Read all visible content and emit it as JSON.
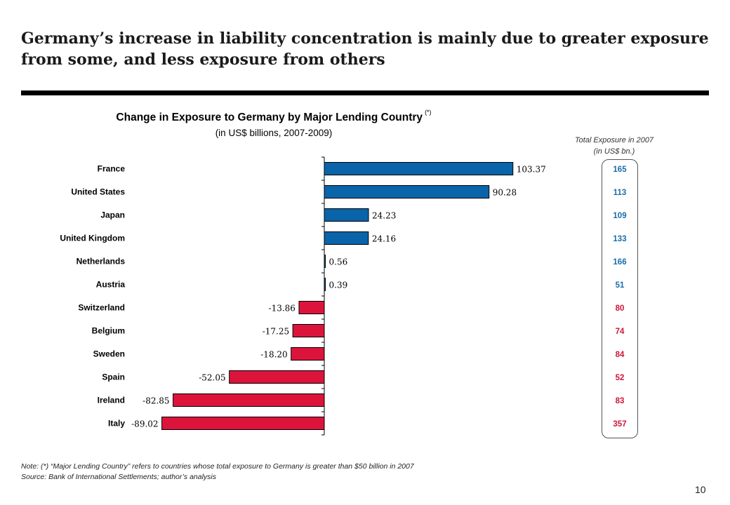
{
  "slide": {
    "title": "Germany’s increase in liability concentration is mainly due to greater exposure from some, and less exposure from others",
    "page_number": "10"
  },
  "colors": {
    "positive": "#0a64aa",
    "negative": "#dc143c",
    "side_positive": "#1a6ea8",
    "side_negative": "#d01438"
  },
  "side_panel": {
    "header_line1": "Total Exposure in 2007",
    "header_line2": "(in US$ bn.)"
  },
  "footnote": {
    "note": "Note: (*) “Major Lending Country” refers to countries whose total exposure to Germany is greater than $50 billion in 2007",
    "source": "Source: Bank of International Settlements; author’s analysis"
  },
  "chart_data": {
    "type": "bar",
    "orientation": "horizontal",
    "title": "Change in Exposure to Germany by Major Lending Country",
    "title_marker": "(*)",
    "subtitle": "(in US$ billions, 2007-2009)",
    "categories": [
      "France",
      "United States",
      "Japan",
      "United Kingdom",
      "Netherlands",
      "Austria",
      "Switzerland",
      "Belgium",
      "Sweden",
      "Spain",
      "Ireland",
      "Italy"
    ],
    "values": [
      103.37,
      90.28,
      24.23,
      24.16,
      0.56,
      0.39,
      -13.86,
      -17.25,
      -18.2,
      -52.05,
      -82.85,
      -89.02
    ],
    "value_labels": [
      "103.37",
      "90.28",
      "24.23",
      "24.16",
      "0.56",
      "0.39",
      "-13.86",
      "-17.25",
      "-18.20",
      "-52.05",
      "-82.85",
      "-89.02"
    ],
    "total_exposure_2007": [
      "165",
      "113",
      "109",
      "133",
      "166",
      "51",
      "80",
      "74",
      "84",
      "52",
      "83",
      "357"
    ],
    "xlim": [
      -110,
      110
    ],
    "grid": false,
    "legend": "none"
  }
}
